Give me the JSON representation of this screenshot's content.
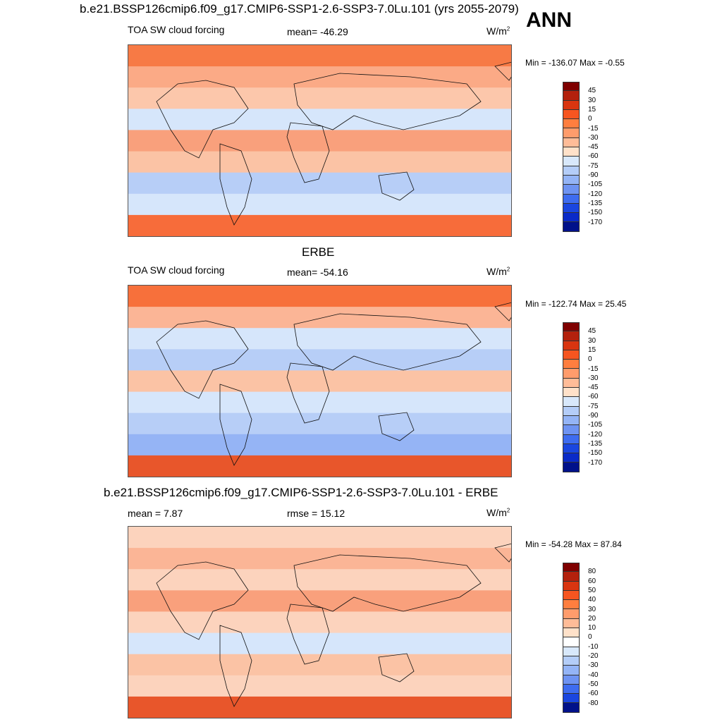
{
  "header": {
    "case_title": "b.e21.BSSP126cmip6.f09_g17.CMIP6-SSP1-2.6-SSP3-7.0Lu.101 (yrs 2055-2079)",
    "season": "ANN"
  },
  "panels": [
    {
      "title": "",
      "left_label": "TOA SW cloud forcing",
      "center_label": "mean= -46.29",
      "units": "W/m",
      "units_sup": "2",
      "minmax": "Min = -136.07 Max =  -0.55",
      "levels": [
        "45",
        "30",
        "15",
        "0",
        "-15",
        "-30",
        "-45",
        "-60",
        "-75",
        "-90",
        "-105",
        "-120",
        "-135",
        "-150",
        "-170"
      ],
      "colors": [
        "#7f0000",
        "#b3210d",
        "#d93510",
        "#f65520",
        "#ff7e3f",
        "#ff9c6c",
        "#ffbc98",
        "#ffe1c9",
        "#d8e8fb",
        "#b4cdf8",
        "#94b4f6",
        "#6e93f2",
        "#3e6cf0",
        "#1a46e0",
        "#0a2ac8",
        "#00118a"
      ],
      "bands": [
        "#f77a45",
        "#fbaa86",
        "#fcc7ab",
        "#d6e6fb",
        "#f9a07c",
        "#fbc3a5",
        "#b7cef7",
        "#d6e6fb",
        "#f76c3a"
      ]
    },
    {
      "title": "ERBE",
      "left_label": "TOA SW cloud forcing",
      "center_label": "mean= -54.16",
      "units": "W/m",
      "units_sup": "2",
      "minmax": "Min = -122.74 Max =  25.45",
      "levels": [
        "45",
        "30",
        "15",
        "0",
        "-15",
        "-30",
        "-45",
        "-60",
        "-75",
        "-90",
        "-105",
        "-120",
        "-135",
        "-150",
        "-170"
      ],
      "colors": [
        "#7f0000",
        "#b3210d",
        "#d93510",
        "#f65520",
        "#ff7e3f",
        "#ff9c6c",
        "#ffbc98",
        "#ffe1c9",
        "#d8e8fb",
        "#b4cdf8",
        "#94b4f6",
        "#6e93f2",
        "#3e6cf0",
        "#1a46e0",
        "#0a2ac8",
        "#00118a"
      ],
      "bands": [
        "#f7703b",
        "#fbb596",
        "#d6e6fb",
        "#b7cef7",
        "#fbc3a5",
        "#d6e6fb",
        "#b7cef7",
        "#95b4f5",
        "#e8562b"
      ]
    },
    {
      "title": "b.e21.BSSP126cmip6.f09_g17.CMIP6-SSP1-2.6-SSP3-7.0Lu.101 - ERBE",
      "left_label": "mean =   7.87",
      "center_label": "rmse =  15.12",
      "units": "W/m",
      "units_sup": "2",
      "minmax": "Min = -54.28 Max =  87.84",
      "levels": [
        "80",
        "60",
        "50",
        "40",
        "30",
        "20",
        "10",
        "0",
        "-10",
        "-20",
        "-30",
        "-40",
        "-50",
        "-60",
        "-80"
      ],
      "colors": [
        "#7f0000",
        "#b3210d",
        "#d93510",
        "#f65520",
        "#ff7e3f",
        "#ff9c6c",
        "#ffbc98",
        "#ffe1c9",
        "#ffffff",
        "#d8e8fb",
        "#b4cdf8",
        "#94b4f6",
        "#6e93f2",
        "#3e6cf0",
        "#1a46e0",
        "#00118a"
      ],
      "bands": [
        "#fcd3bd",
        "#fbb596",
        "#fcd3bd",
        "#f9a07c",
        "#fcd3bd",
        "#d6e6fb",
        "#fbc3a5",
        "#fcd3bd",
        "#e8562b"
      ]
    }
  ]
}
